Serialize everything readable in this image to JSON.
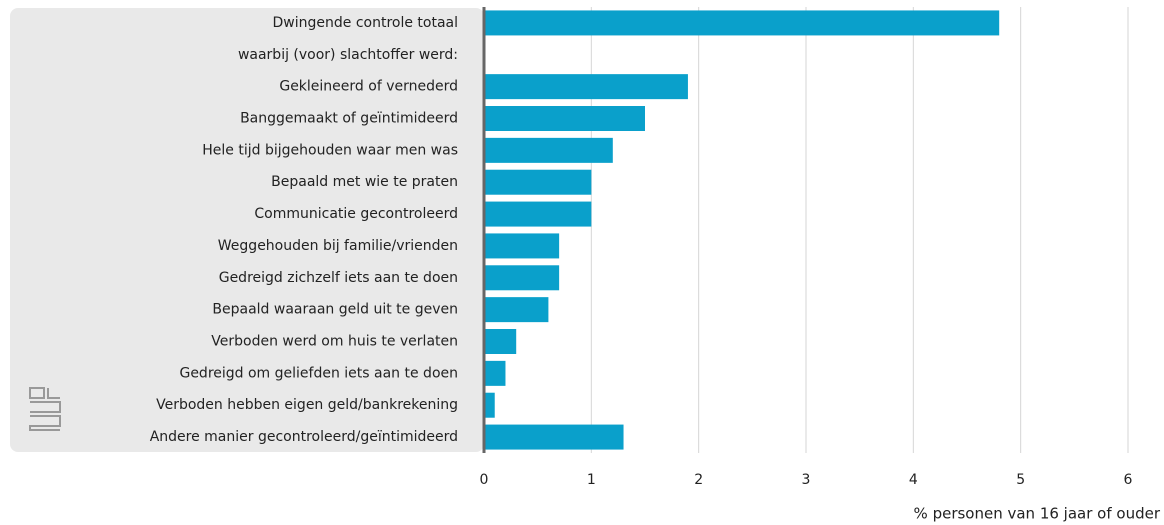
{
  "chart_data": {
    "type": "bar",
    "orientation": "horizontal",
    "categories": [
      "Dwingende controle totaal",
      "waarbij (voor) slachtoffer werd:",
      "Gekleineerd of vernederd",
      "Banggemaakt of geïntimideerd",
      "Hele tijd bijgehouden waar men was",
      "Bepaald met wie te praten",
      "Communicatie gecontroleerd",
      "Weggehouden bij familie/vrienden",
      "Gedreigd zichzelf iets aan te doen",
      "Bepaald waaraan geld uit te geven",
      "Verboden werd om huis te verlaten",
      "Gedreigd om geliefden iets aan te doen",
      "Verboden hebben eigen geld/bankrekening",
      "Andere manier gecontroleerd/geïntimideerd"
    ],
    "values": [
      4.8,
      null,
      1.9,
      1.5,
      1.2,
      1.0,
      1.0,
      0.7,
      0.7,
      0.6,
      0.3,
      0.2,
      0.1,
      1.3
    ],
    "color": "#0aa0cb",
    "xlim": [
      0,
      6
    ],
    "xticks": [
      0,
      1,
      2,
      3,
      4,
      5,
      6
    ],
    "grid": true,
    "x_label": "% personen van 16 jaar of ouder"
  }
}
